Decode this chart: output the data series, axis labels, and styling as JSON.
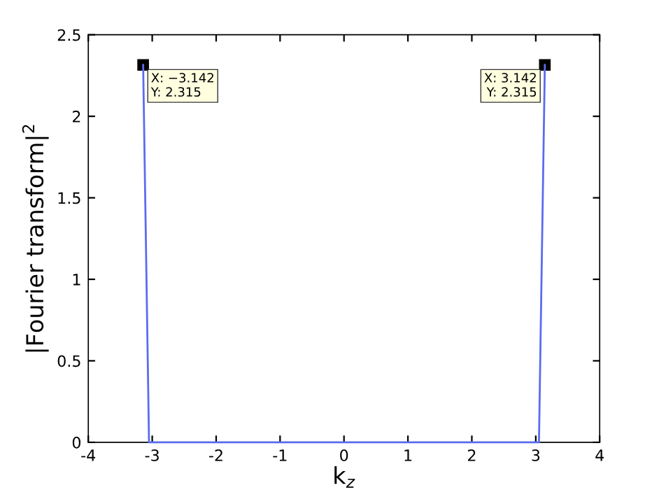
{
  "chart_data": {
    "type": "line",
    "xlabel": "k$_{z}$",
    "ylabel": "|Fourier transform|$^{2}$",
    "x": [
      -3.142,
      -3.05,
      -2,
      -1,
      0,
      1,
      2,
      3.05,
      3.142
    ],
    "series": [
      {
        "color": "#5a6cf0",
        "values": [
          2.315,
          0,
          0,
          0,
          0,
          0,
          0,
          0,
          2.315
        ]
      }
    ],
    "xlim": [
      -4,
      4
    ],
    "xticks": [
      -4,
      -3,
      -2,
      -1,
      0,
      1,
      2,
      3,
      4
    ],
    "ylim": [
      0,
      2.5
    ],
    "yticks": [
      0,
      0.5,
      1,
      1.5,
      2,
      2.5
    ],
    "grid": false,
    "marker": "none",
    "line_style": "solid",
    "annotations": [
      {
        "text": "X: −3.142\nY: 2.315",
        "x": -3.142,
        "y": 2.315
      },
      {
        "text": "X: 3.142\nY: 2.315",
        "x": 3.142,
        "y": 2.315
      }
    ]
  }
}
